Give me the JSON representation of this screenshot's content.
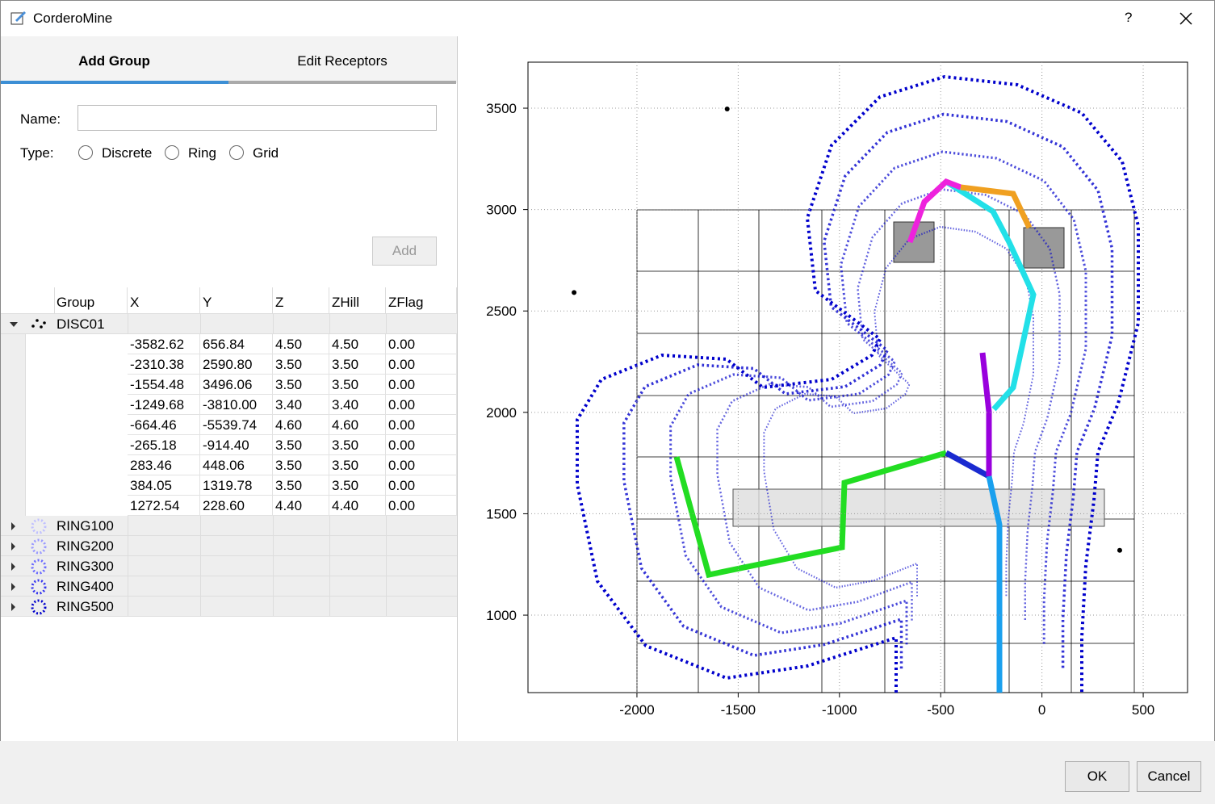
{
  "window": {
    "title": "CorderoMine",
    "help": "?"
  },
  "tabs": [
    "Add Group",
    "Edit Receptors"
  ],
  "form": {
    "name_label": "Name:",
    "type_label": "Type:",
    "types": [
      "Discrete",
      "Ring",
      "Grid"
    ],
    "add_button": "Add"
  },
  "table": {
    "columns": [
      "Group",
      "X",
      "Y",
      "Z",
      "ZHill",
      "ZFlag"
    ],
    "groups": [
      {
        "name": "DISC01",
        "rows": [
          [
            "-3582.62",
            "656.84",
            "4.50",
            "4.50",
            "0.00"
          ],
          [
            "-2310.38",
            "2590.80",
            "3.50",
            "3.50",
            "0.00"
          ],
          [
            "-1554.48",
            "3496.06",
            "3.50",
            "3.50",
            "0.00"
          ],
          [
            "-1249.68",
            "-3810.00",
            "3.40",
            "3.40",
            "0.00"
          ],
          [
            "-664.46",
            "-5539.74",
            "4.60",
            "4.60",
            "0.00"
          ],
          [
            "-265.18",
            "-914.40",
            "3.50",
            "3.50",
            "0.00"
          ],
          [
            "283.46",
            "448.06",
            "3.50",
            "3.50",
            "0.00"
          ],
          [
            "384.05",
            "1319.78",
            "3.50",
            "3.50",
            "0.00"
          ],
          [
            "1272.54",
            "228.60",
            "4.40",
            "4.40",
            "0.00"
          ]
        ]
      },
      {
        "name": "RING100"
      },
      {
        "name": "RING200"
      },
      {
        "name": "RING300"
      },
      {
        "name": "RING400"
      },
      {
        "name": "RING500"
      }
    ]
  },
  "plot": {
    "xlim": [
      -2538,
      719
    ],
    "ylim": [
      618,
      3727
    ],
    "xticks": [
      -2000,
      -1500,
      -1000,
      -500,
      0,
      500
    ],
    "yticks": [
      1000,
      1500,
      2000,
      2500,
      3000,
      3500
    ]
  },
  "buttons": [
    "OK",
    "Cancel"
  ]
}
